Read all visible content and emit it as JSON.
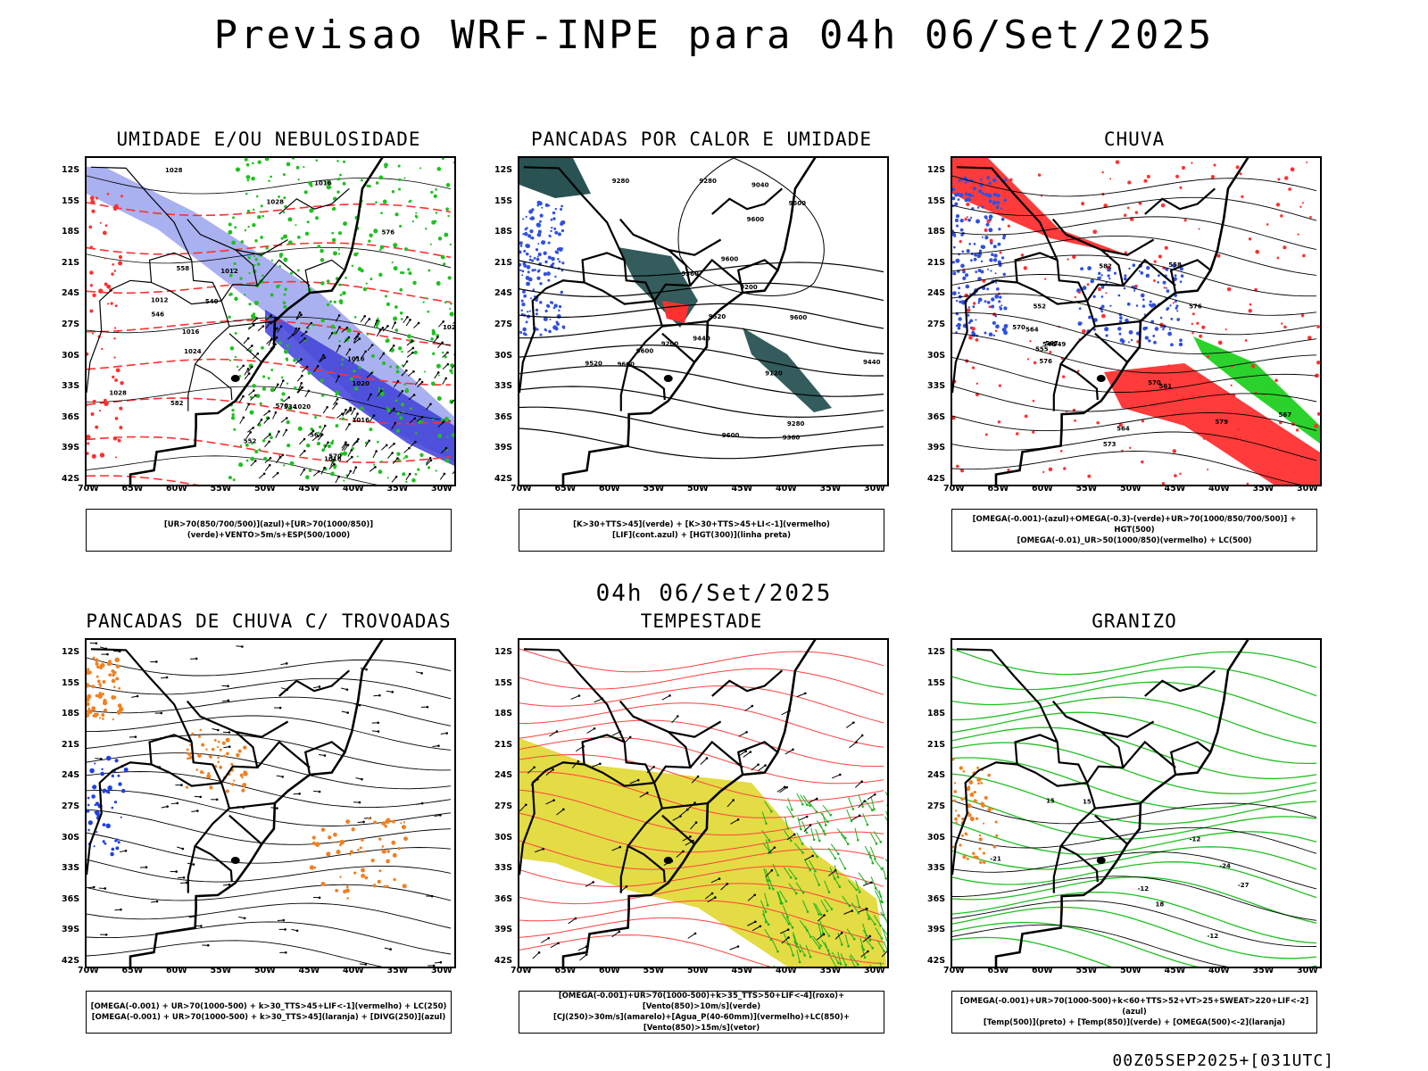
{
  "main_title": "Previsao WRF-INPE  para 04h 06/Set/2025",
  "mid_date": "04h 06/Set/2025",
  "footer": "00Z05SEP2025+[031UTC]",
  "lat_ticks": [
    "12S",
    "15S",
    "18S",
    "21S",
    "24S",
    "27S",
    "30S",
    "33S",
    "36S",
    "39S",
    "42S"
  ],
  "lon_ticks": [
    "70W",
    "65W",
    "60W",
    "55W",
    "50W",
    "45W",
    "40W",
    "35W",
    "30W"
  ],
  "panels": [
    {
      "title": "UMIDADE E/OU NEBULOSIDADE",
      "caption_lines": [
        "[UR>70(850/700/500)](azul)+[UR>70(1000/850)](verde)+VENTO>5m/s+ESP(500/1000)"
      ],
      "contour_labels": [
        "1012",
        "1016",
        "1012",
        "1016",
        "1020",
        "1020",
        "1016",
        "1024",
        "1020",
        "1028",
        "1028",
        "1028",
        "1016",
        "1016",
        "570",
        "564",
        "558",
        "552",
        "546",
        "540",
        "534",
        "570",
        "576",
        "582"
      ],
      "field_colors": {
        "blue": "#4040d8",
        "light_blue": "#a0a8f0",
        "green": "#20c020",
        "red": "#ff3030"
      }
    },
    {
      "title": "PANCADAS POR CALOR E UMIDADE",
      "caption_lines": [
        "[K>30+TTS>45](verde) + [K>30+TTS>45+LI<-1](vermelho)",
        "[LIF](cont.azul) + [HGT(300)](linha preta)"
      ],
      "contour_labels": [
        "9600",
        "9600",
        "9600",
        "9600",
        "9600",
        "9600",
        "9600",
        "9520",
        "9520",
        "9440",
        "9440",
        "9360",
        "9360",
        "9280",
        "9280",
        "9200",
        "9120",
        "9040",
        "9280",
        "9200"
      ],
      "field_colors": {
        "dark_teal": "#1e4a4a",
        "red": "#ff3030",
        "blue": "#3050e0"
      }
    },
    {
      "title": "CHUVA",
      "caption_lines": [
        "[OMEGA(-0.001)-(azul)+OMEGA(-0.3)-(verde)+UR>70(1000/850/700/500)] + HGT(500)",
        "[OMEGA(-0.01)_UR>50(1000/850)(vermelho) + LC(500)"
      ],
      "contour_labels": [
        "582",
        "576",
        "579",
        "570",
        "567",
        "564",
        "561",
        "558",
        "555",
        "552",
        "549",
        "546",
        "576",
        "573",
        "570",
        "567",
        "564"
      ],
      "field_colors": {
        "red": "#ff3030",
        "blue": "#3050e0",
        "green": "#20d020"
      }
    },
    {
      "title": "PANCADAS DE CHUVA C/ TROVOADAS",
      "caption_lines": [
        "[OMEGA(-0.001) + UR>70(1000-500) + k>30_TTS>45+LIF<-1](vermelho) + LC(250)",
        "[OMEGA(-0.001) + UR>70(1000-500) + k>30_TTS>45](laranja) + [DIVG(250)](azul)"
      ],
      "contour_labels": [],
      "field_colors": {
        "orange": "#f08020",
        "blue": "#2040e0",
        "red": "#ff3030"
      }
    },
    {
      "title": "TEMPESTADE",
      "caption_lines": [
        "[OMEGA(-0.001)+UR>70(1000-500)+k>35_TTS>50+LIF<-4](roxo)+[Vento(850)>10m/s](verde)",
        "[CJ(250)>30m/s](amarelo)+[Agua_P(40-60mm)](vermelho)+LC(850)+[Vento(850)>15m/s](vetor)"
      ],
      "contour_labels": [],
      "field_colors": {
        "yellow": "#e0d830",
        "red": "#ff4040",
        "green": "#20b020"
      }
    },
    {
      "title": "GRANIZO",
      "caption_lines": [
        "[OMEGA(-0.001)+UR>70(1000-500)+k<60+TTS>52+VT>25+SWEAT>220+LIF<-2](azul)",
        "[Temp(500)](preto) + [Temp(850)](verde) + [OMEGA(500)<-2](laranja)"
      ],
      "contour_labels": [
        "-12",
        "-12",
        "15",
        "15",
        "18",
        "-12",
        "-24",
        "-27",
        "-21"
      ],
      "field_colors": {
        "green": "#20c020",
        "orange": "#f08020"
      }
    }
  ]
}
